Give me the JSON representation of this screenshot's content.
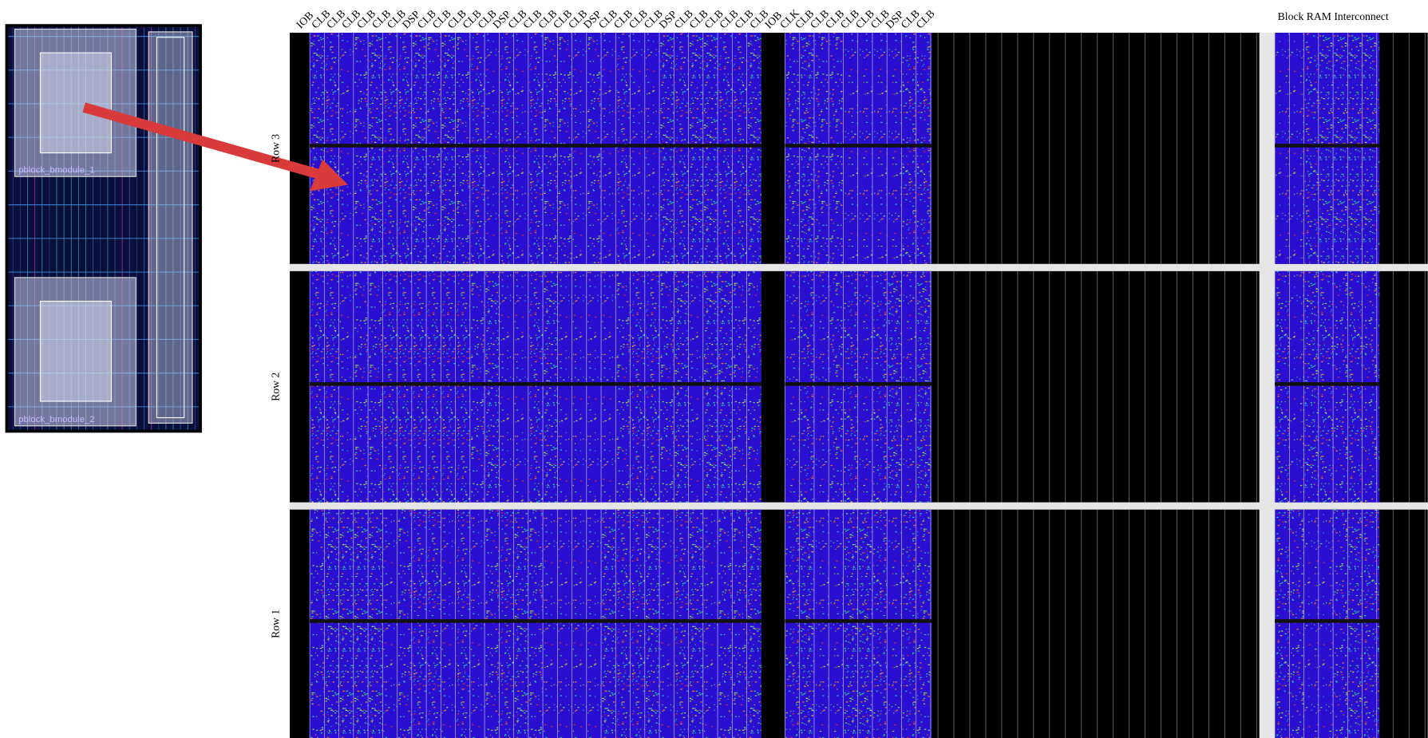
{
  "column_labels": [
    "IOB",
    "CLB",
    "CLB",
    "CLB",
    "CLB",
    "CLB",
    "CLB",
    "DSP",
    "CLB",
    "CLB",
    "CLB",
    "CLB",
    "CLB",
    "DSP",
    "CLB",
    "CLB",
    "CLB",
    "CLB",
    "CLB",
    "DSP",
    "CLB",
    "CLB",
    "CLB",
    "CLB",
    "DSP",
    "CLB",
    "CLB",
    "CLB",
    "CLB",
    "CLB",
    "CLB",
    "IOB",
    "CLK",
    "CLB",
    "CLB",
    "CLB",
    "CLB",
    "CLB",
    "CLB",
    "DSP",
    "CLB",
    "CLB"
  ],
  "rows": [
    "Row 3",
    "Row 2",
    "Row 1"
  ],
  "right_label": "Block RAM Interconnect",
  "floorplan": {
    "labels": [
      "pblock_bmodule_1",
      "pblock_bmodule_2"
    ]
  }
}
